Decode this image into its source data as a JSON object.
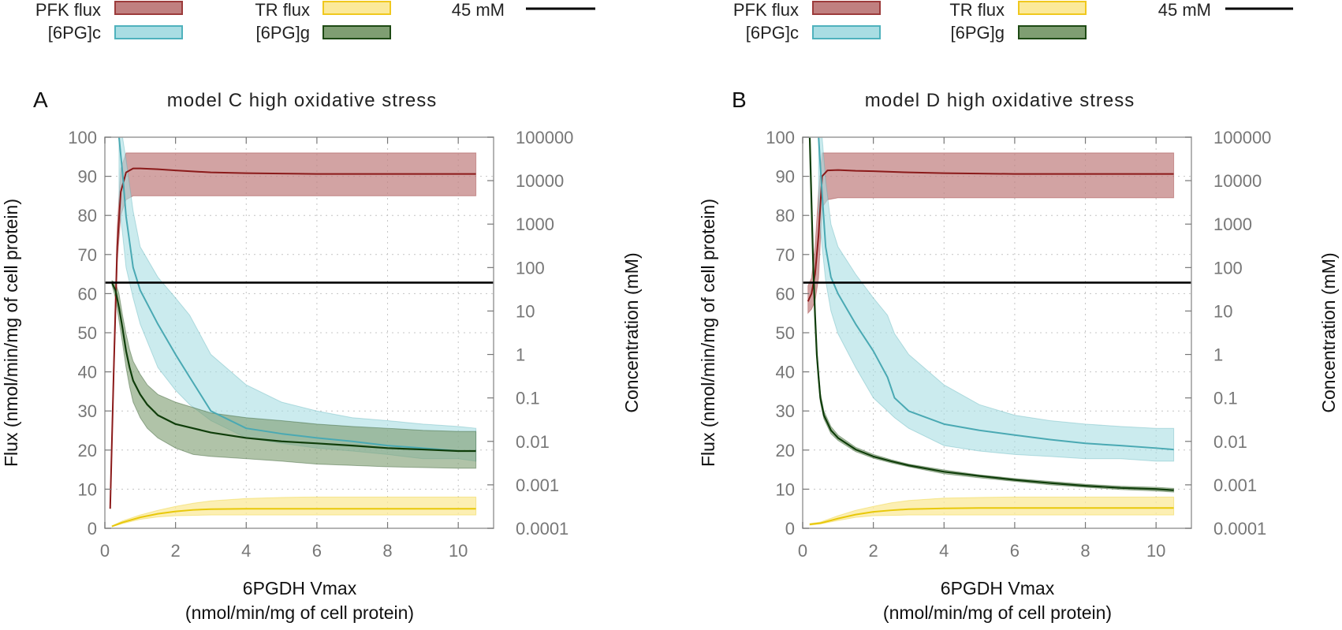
{
  "legend": {
    "items": [
      {
        "label": "PFK flux",
        "type": "band",
        "fill": "#c08080",
        "stroke": "#9c3b3b"
      },
      {
        "label": "TR flux",
        "type": "band",
        "fill": "#fbe99a",
        "stroke": "#f0c81e"
      },
      {
        "label": "45 mM",
        "type": "line",
        "stroke": "#000000"
      },
      {
        "label": "[6PG]c",
        "type": "band",
        "fill": "#a9dde3",
        "stroke": "#4fb2bd"
      },
      {
        "label": "[6PG]g",
        "type": "band",
        "fill": "#7f9e72",
        "stroke": "#1e4a14"
      }
    ]
  },
  "colors": {
    "pfk_band": "#c08080",
    "pfk_line": "#8b1a1a",
    "tr_band": "#fbe99a",
    "tr_line": "#e8c80a",
    "pgc_band": "#a9dde3",
    "pgc_line": "#4aa9b3",
    "pgg_band": "#7f9e72",
    "pgg_line": "#0f3d0a",
    "ref_line": "#000000"
  },
  "chart_data": [
    {
      "type": "line",
      "panel_label": "A",
      "title": "model C high oxidative stress",
      "xlabel": "6PGDH Vmax",
      "xlabel_units": "(nmol/min/mg of cell protein)",
      "ylabel_left": "Flux (nmol/min/mg of cell protein)",
      "ylabel_right": "Concentration (mM)",
      "xlim": [
        0,
        11
      ],
      "ylim_left": [
        0,
        100
      ],
      "ylim_right": [
        0.0001,
        100000
      ],
      "yscale_right": "log",
      "grid": true,
      "x_ticks": [
        "0",
        "2",
        "4",
        "6",
        "8",
        "10"
      ],
      "yleft_ticks": [
        "0",
        "10",
        "20",
        "30",
        "40",
        "50",
        "60",
        "70",
        "80",
        "90",
        "100"
      ],
      "yright_ticks": [
        "0.0001",
        "0.001",
        "0.01",
        "0.1",
        "1",
        "10",
        "100",
        "1000",
        "10000",
        "100000"
      ],
      "reference_line": {
        "label": "45 mM",
        "value": 45
      },
      "series": [
        {
          "name": "PFK flux",
          "axis": "left",
          "x": [
            0.15,
            0.25,
            0.35,
            0.45,
            0.6,
            0.8,
            1,
            1.5,
            2,
            3,
            4,
            5,
            6,
            7,
            8,
            9,
            10,
            10.5
          ],
          "y": [
            5,
            40,
            72,
            86,
            91,
            92,
            92,
            91.8,
            91.5,
            91,
            90.8,
            90.7,
            90.6,
            90.6,
            90.6,
            90.6,
            90.6,
            90.6
          ],
          "y_low": [
            5,
            38,
            68,
            80,
            84,
            85,
            85,
            85,
            85,
            85,
            85,
            85,
            85,
            85,
            85,
            85,
            85,
            85
          ],
          "y_high": [
            6,
            43,
            77,
            92,
            96,
            96,
            96,
            96,
            96,
            96,
            96,
            96,
            96,
            96,
            96,
            96,
            96,
            96
          ]
        },
        {
          "name": "TR flux",
          "axis": "left",
          "x": [
            0.2,
            0.5,
            1,
            1.5,
            2,
            2.5,
            3,
            4,
            5,
            6,
            7,
            8,
            9,
            10,
            10.5
          ],
          "y": [
            0.5,
            1.5,
            2.8,
            3.7,
            4.3,
            4.7,
            4.9,
            5,
            5,
            5,
            5,
            5,
            5,
            5,
            5
          ],
          "y_low": [
            0.4,
            1.2,
            2.3,
            2.9,
            3.2,
            3.3,
            3.4,
            3.4,
            3.4,
            3.4,
            3.4,
            3.4,
            3.4,
            3.4,
            3.4
          ],
          "y_high": [
            0.6,
            1.9,
            3.4,
            4.6,
            5.6,
            6.4,
            7,
            7.6,
            7.9,
            8,
            8,
            8,
            8,
            8,
            8
          ]
        },
        {
          "name": "[6PG]c",
          "axis": "right",
          "x": [
            0.4,
            0.5,
            0.6,
            0.8,
            1,
            1.5,
            2,
            2.4,
            3,
            4,
            5,
            6,
            7,
            8,
            9,
            10,
            10.5
          ],
          "y": [
            100000,
            15000,
            1500,
            100,
            30,
            5,
            1,
            0.3,
            0.05,
            0.02,
            0.015,
            0.012,
            0.01,
            0.008,
            0.007,
            0.006,
            0.006
          ],
          "y_low": [
            3000,
            600,
            100,
            20,
            5,
            0.5,
            0.15,
            0.07,
            0.03,
            0.012,
            0.009,
            0.007,
            0.006,
            0.005,
            0.004,
            0.004,
            0.0035
          ],
          "y_high": [
            100000,
            100000,
            30000,
            2000,
            300,
            60,
            20,
            8,
            1,
            0.2,
            0.08,
            0.05,
            0.035,
            0.03,
            0.025,
            0.022,
            0.02
          ]
        },
        {
          "name": "[6PG]g",
          "axis": "right",
          "x": [
            0.2,
            0.3,
            0.4,
            0.5,
            0.6,
            0.7,
            0.8,
            1,
            1.2,
            1.5,
            2,
            2.5,
            3,
            4,
            5,
            6,
            7,
            8,
            9,
            10,
            10.5
          ],
          "y": [
            45,
            30,
            12,
            4,
            1.2,
            0.5,
            0.25,
            0.12,
            0.07,
            0.04,
            0.025,
            0.02,
            0.016,
            0.012,
            0.01,
            0.009,
            0.008,
            0.007,
            0.0065,
            0.006,
            0.006
          ],
          "y_low": [
            40,
            20,
            6,
            1.8,
            0.5,
            0.18,
            0.08,
            0.035,
            0.02,
            0.012,
            0.007,
            0.005,
            0.0045,
            0.004,
            0.0035,
            0.003,
            0.0028,
            0.0026,
            0.0025,
            0.0024,
            0.0024
          ],
          "y_high": [
            50,
            45,
            25,
            8,
            3,
            1.3,
            0.7,
            0.35,
            0.2,
            0.12,
            0.08,
            0.06,
            0.045,
            0.035,
            0.03,
            0.025,
            0.022,
            0.02,
            0.018,
            0.017,
            0.017
          ]
        }
      ]
    },
    {
      "type": "line",
      "panel_label": "B",
      "title": "model D high oxidative stress",
      "xlabel": "6PGDH Vmax",
      "xlabel_units": "(nmol/min/mg of cell protein)",
      "ylabel_left": "Flux (nmol/min/mg of cell protein)",
      "ylabel_right": "Concentration (mM)",
      "xlim": [
        0,
        11
      ],
      "ylim_left": [
        0,
        100
      ],
      "ylim_right": [
        0.0001,
        100000
      ],
      "yscale_right": "log",
      "grid": true,
      "x_ticks": [
        "0",
        "2",
        "4",
        "6",
        "8",
        "10"
      ],
      "yleft_ticks": [
        "0",
        "10",
        "20",
        "30",
        "40",
        "50",
        "60",
        "70",
        "80",
        "90",
        "100"
      ],
      "yright_ticks": [
        "0.0001",
        "0.001",
        "0.01",
        "0.1",
        "1",
        "10",
        "100",
        "1000",
        "10000",
        "100000"
      ],
      "reference_line": {
        "label": "45 mM",
        "value": 45
      },
      "series": [
        {
          "name": "PFK flux",
          "axis": "left",
          "x": [
            0.15,
            0.25,
            0.35,
            0.45,
            0.55,
            0.7,
            1,
            1.5,
            2,
            3,
            4,
            5,
            6,
            7,
            8,
            9,
            10,
            10.5
          ],
          "y": [
            58,
            60,
            65,
            75,
            90,
            91.5,
            91.6,
            91.4,
            91.3,
            91,
            90.8,
            90.7,
            90.6,
            90.6,
            90.6,
            90.6,
            90.6,
            90.6
          ],
          "y_low": [
            55,
            56,
            58,
            64,
            82,
            84,
            84.5,
            84.5,
            84.5,
            84.5,
            84.5,
            84.5,
            84.5,
            84.5,
            84.5,
            84.5,
            84.5,
            84.5
          ],
          "y_high": [
            62,
            64,
            72,
            86,
            96,
            96,
            96,
            96,
            96,
            96,
            96,
            96,
            96,
            96,
            96,
            96,
            96,
            96
          ]
        },
        {
          "name": "TR flux",
          "axis": "left",
          "x": [
            0.2,
            0.5,
            1,
            1.5,
            2,
            2.5,
            3,
            4,
            5,
            6,
            7,
            8,
            9,
            10,
            10.5
          ],
          "y": [
            1,
            1.3,
            2.5,
            3.5,
            4.2,
            4.6,
            4.9,
            5.1,
            5.2,
            5.2,
            5.2,
            5.2,
            5.2,
            5.2,
            5.2
          ],
          "y_low": [
            0.8,
            1.1,
            2,
            2.8,
            3.2,
            3.3,
            3.4,
            3.4,
            3.4,
            3.4,
            3.4,
            3.4,
            3.4,
            3.4,
            3.4
          ],
          "y_high": [
            1.2,
            1.6,
            3.2,
            4.6,
            5.6,
            6.5,
            7.1,
            7.7,
            7.9,
            8,
            8,
            8,
            8,
            8,
            8
          ]
        },
        {
          "name": "[6PG]c",
          "axis": "right",
          "x": [
            0.45,
            0.55,
            0.65,
            0.8,
            1,
            1.5,
            2,
            2.4,
            2.6,
            3,
            4,
            5,
            6,
            7,
            8,
            9,
            10,
            10.5
          ],
          "y": [
            100000,
            5000,
            300,
            60,
            25,
            5,
            1.2,
            0.3,
            0.1,
            0.05,
            0.025,
            0.018,
            0.014,
            0.011,
            0.009,
            0.008,
            0.007,
            0.0065
          ],
          "y_low": [
            2000,
            300,
            50,
            10,
            3,
            0.5,
            0.1,
            0.05,
            0.035,
            0.02,
            0.008,
            0.006,
            0.005,
            0.0045,
            0.004,
            0.004,
            0.0035,
            0.0035
          ],
          "y_high": [
            100000,
            100000,
            10000,
            1000,
            300,
            70,
            20,
            8,
            3,
            1,
            0.2,
            0.07,
            0.04,
            0.03,
            0.025,
            0.022,
            0.02,
            0.02
          ]
        },
        {
          "name": "[6PG]g",
          "axis": "right",
          "x": [
            0.2,
            0.25,
            0.3,
            0.35,
            0.4,
            0.45,
            0.5,
            0.6,
            0.8,
            1,
            1.5,
            2,
            2.5,
            3,
            4,
            5,
            6,
            7,
            8,
            9,
            10,
            10.5
          ],
          "y": [
            100000,
            3000,
            100,
            8,
            1,
            0.3,
            0.1,
            0.04,
            0.018,
            0.012,
            0.0065,
            0.0045,
            0.0035,
            0.0028,
            0.002,
            0.0016,
            0.0013,
            0.0011,
            0.00095,
            0.00085,
            0.0008,
            0.00075
          ],
          "y_low": [
            100000,
            2000,
            70,
            6,
            0.8,
            0.24,
            0.08,
            0.033,
            0.015,
            0.0105,
            0.0058,
            0.0041,
            0.0032,
            0.0026,
            0.0018,
            0.00145,
            0.0012,
            0.001,
            0.00088,
            0.00078,
            0.00072,
            0.00068
          ],
          "y_high": [
            100000,
            4500,
            140,
            11,
            1.3,
            0.38,
            0.13,
            0.05,
            0.022,
            0.014,
            0.0073,
            0.005,
            0.0038,
            0.003,
            0.0022,
            0.0017,
            0.0014,
            0.0012,
            0.00103,
            0.00093,
            0.00088,
            0.00083
          ]
        }
      ]
    }
  ]
}
